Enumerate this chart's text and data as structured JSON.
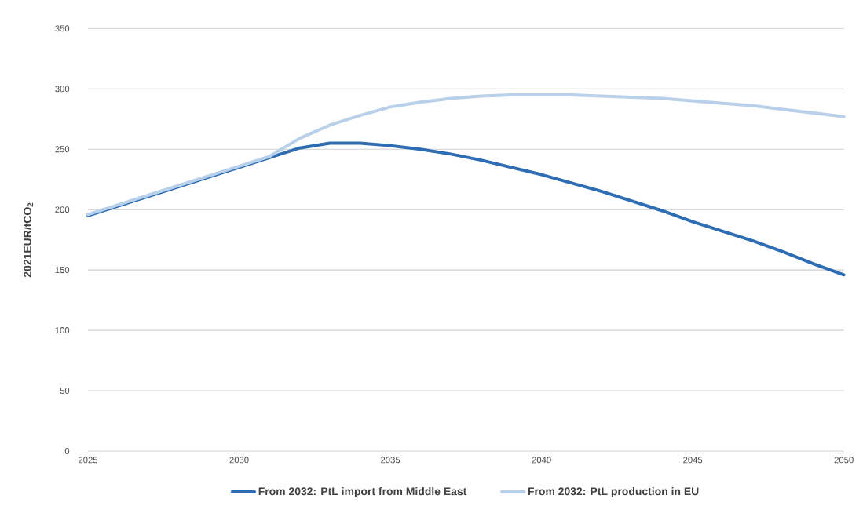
{
  "chart_data": {
    "type": "line",
    "ylabel": "2021EUR/tCO$_{2}$",
    "x": [
      2025,
      2026,
      2027,
      2028,
      2029,
      2030,
      2031,
      2032,
      2033,
      2034,
      2035,
      2036,
      2037,
      2038,
      2039,
      2040,
      2041,
      2042,
      2043,
      2044,
      2045,
      2046,
      2047,
      2048,
      2049,
      2050
    ],
    "series": [
      {
        "name": "From 2032: PtL import from Middle East",
        "color": "#2e6db4",
        "values": [
          195,
          203,
          211,
          219,
          227,
          235,
          243,
          251,
          255,
          255,
          253,
          250,
          246,
          241,
          235,
          229,
          222,
          215,
          207,
          199,
          190,
          182,
          174,
          165,
          155,
          146
        ]
      },
      {
        "name": "From 2032: PtL production in EU",
        "color": "#b8d0ea",
        "values": [
          196,
          204,
          212,
          220,
          228,
          236,
          244,
          259,
          270,
          278,
          285,
          289,
          292,
          294,
          295,
          295,
          295,
          294,
          293,
          292,
          290,
          288,
          286,
          283,
          280,
          277
        ]
      }
    ],
    "xlim": [
      2025,
      2050
    ],
    "xticks": [
      2025,
      2030,
      2035,
      2040,
      2045,
      2050
    ],
    "ylim": [
      0,
      350
    ],
    "yticks": [
      0,
      50,
      100,
      150,
      200,
      250,
      300,
      350
    ],
    "grid": "y",
    "legend": "bottom",
    "marker": "none",
    "line_style": "solid"
  }
}
